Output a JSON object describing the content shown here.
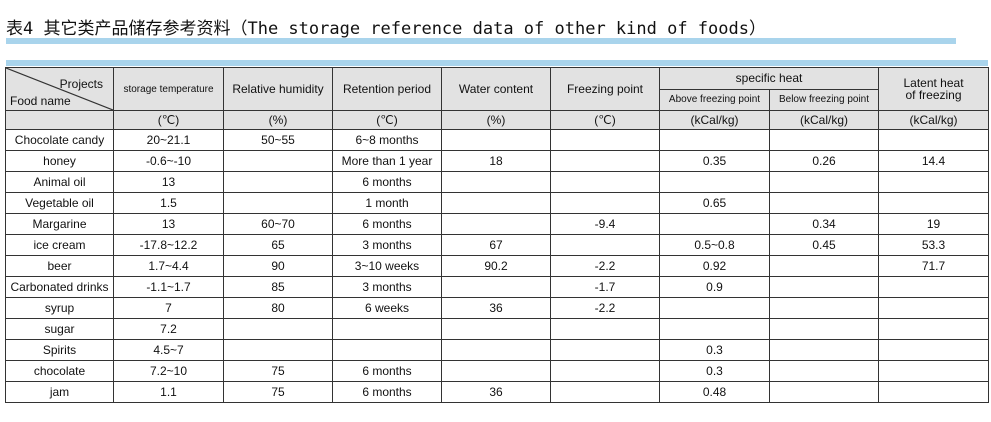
{
  "title": "表4 其它类产品储存参考资料（The storage reference data of other kind of foods）",
  "header": {
    "projects": "Projects",
    "food_name": "Food name",
    "storage_temperature": "storage temperature",
    "relative_humidity": "Relative humidity",
    "retention_period": "Retention period",
    "water_content": "Water content",
    "freezing_point": "Freezing point",
    "specific_heat": "specific heat",
    "above_freezing": "Above freezing point",
    "below_freezing": "Below freezing point",
    "latent_heat_1": "Latent heat",
    "latent_heat_2": "of freezing"
  },
  "units": {
    "temp": "(℃)",
    "humidity": "(%)",
    "retention": "(℃)",
    "water": "(%)",
    "freezing": "(℃)",
    "above": "(kCal/kg)",
    "below": "(kCal/kg)",
    "latent": "(kCal/kg)"
  },
  "rows": [
    {
      "food": "Chocolate candy",
      "temp": "20~21.1",
      "humidity": "50~55",
      "retention": "6~8 months",
      "water": "",
      "freezing": "",
      "above": "",
      "below": "",
      "latent": ""
    },
    {
      "food": "honey",
      "temp": "-0.6~-10",
      "humidity": "",
      "retention": "More than 1 year",
      "water": "18",
      "freezing": "",
      "above": "0.35",
      "below": "0.26",
      "latent": "14.4"
    },
    {
      "food": "Animal oil",
      "temp": "13",
      "humidity": "",
      "retention": "6 months",
      "water": "",
      "freezing": "",
      "above": "",
      "below": "",
      "latent": ""
    },
    {
      "food": "Vegetable oil",
      "temp": "1.5",
      "humidity": "",
      "retention": "1 month",
      "water": "",
      "freezing": "",
      "above": "0.65",
      "below": "",
      "latent": ""
    },
    {
      "food": "Margarine",
      "temp": "13",
      "humidity": "60~70",
      "retention": "6 months",
      "water": "",
      "freezing": "-9.4",
      "above": "",
      "below": "0.34",
      "latent": "19"
    },
    {
      "food": "ice cream",
      "temp": "-17.8~12.2",
      "humidity": "65",
      "retention": "3 months",
      "water": "67",
      "freezing": "",
      "above": "0.5~0.8",
      "below": "0.45",
      "latent": "53.3"
    },
    {
      "food": "beer",
      "temp": "1.7~4.4",
      "humidity": "90",
      "retention": "3~10 weeks",
      "water": "90.2",
      "freezing": "-2.2",
      "above": "0.92",
      "below": "",
      "latent": "71.7"
    },
    {
      "food": "Carbonated drinks",
      "temp": "-1.1~1.7",
      "humidity": "85",
      "retention": "3 months",
      "water": "",
      "freezing": "-1.7",
      "above": "0.9",
      "below": "",
      "latent": ""
    },
    {
      "food": "syrup",
      "temp": "7",
      "humidity": "80",
      "retention": "6 weeks",
      "water": "36",
      "freezing": "-2.2",
      "above": "",
      "below": "",
      "latent": ""
    },
    {
      "food": "sugar",
      "temp": "7.2",
      "humidity": "",
      "retention": "",
      "water": "",
      "freezing": "",
      "above": "",
      "below": "",
      "latent": ""
    },
    {
      "food": "Spirits",
      "temp": "4.5~7",
      "humidity": "",
      "retention": "",
      "water": "",
      "freezing": "",
      "above": "0.3",
      "below": "",
      "latent": ""
    },
    {
      "food": "chocolate",
      "temp": "7.2~10",
      "humidity": "75",
      "retention": "6 months",
      "water": "",
      "freezing": "",
      "above": "0.3",
      "below": "",
      "latent": ""
    },
    {
      "food": "jam",
      "temp": "1.1",
      "humidity": "75",
      "retention": "6 months",
      "water": "36",
      "freezing": "",
      "above": "0.48",
      "below": "",
      "latent": ""
    }
  ]
}
